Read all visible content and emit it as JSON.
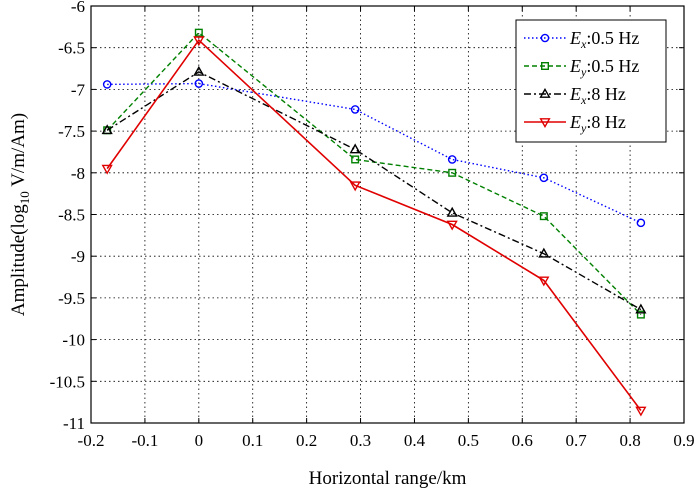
{
  "chart_data": {
    "type": "line",
    "xlabel": "Horizontal range/km",
    "ylabel": {
      "prefix": "Amplitude(log",
      "sub": "10",
      "suffix": " V/m/Am)"
    },
    "xlim": [
      -0.2,
      0.9
    ],
    "ylim": [
      -11,
      -6
    ],
    "x_ticks": [
      -0.2,
      -0.1,
      0,
      0.1,
      0.2,
      0.3,
      0.4,
      0.5,
      0.6,
      0.7,
      0.8,
      0.9
    ],
    "x_tick_labels": [
      "-0.2",
      "-0.1",
      "0",
      "0.1",
      "0.2",
      "0.3",
      "0.4",
      "0.5",
      "0.6",
      "0.7",
      "0.8",
      "0.9"
    ],
    "y_ticks": [
      -6,
      -6.5,
      -7,
      -7.5,
      -8,
      -8.5,
      -9,
      -9.5,
      -10,
      -10.5,
      -11
    ],
    "y_tick_labels": [
      "-6",
      "-6.5",
      "-7",
      "-7.5",
      "-8",
      "-8.5",
      "-9",
      "-9.5",
      "-10",
      "-10.5",
      "-11"
    ],
    "grid": true,
    "legend_position": "top-right",
    "x": [
      -0.17,
      0,
      0.29,
      0.47,
      0.64,
      0.82
    ],
    "series": [
      {
        "name": "Ex:0.5 Hz",
        "legend": {
          "main": "E",
          "sub": "x",
          "rest": ":0.5 Hz"
        },
        "color": "#0000ff",
        "dash": "dotted",
        "marker": "circle",
        "values": [
          -6.94,
          -6.93,
          -7.24,
          -7.84,
          -8.06,
          -8.6
        ]
      },
      {
        "name": "Ey:0.5 Hz",
        "legend": {
          "main": "E",
          "sub": "y",
          "rest": ":0.5 Hz"
        },
        "color": "#008000",
        "dash": "dashed",
        "marker": "square",
        "values": [
          -7.49,
          -6.32,
          -7.84,
          -8.0,
          -8.52,
          -9.7
        ]
      },
      {
        "name": "Ex:8 Hz",
        "legend": {
          "main": "E",
          "sub": "x",
          "rest": ":8 Hz"
        },
        "color": "#000000",
        "dash": "dashdot",
        "marker": "triangle-up",
        "values": [
          -7.49,
          -6.79,
          -7.72,
          -8.48,
          -8.97,
          -9.64
        ]
      },
      {
        "name": "Ey:8 Hz",
        "legend": {
          "main": "E",
          "sub": "y",
          "rest": ":8 Hz"
        },
        "color": "#e00000",
        "dash": "solid",
        "marker": "triangle-down",
        "values": [
          -7.95,
          -6.41,
          -8.15,
          -8.62,
          -9.29,
          -10.85
        ]
      }
    ]
  }
}
